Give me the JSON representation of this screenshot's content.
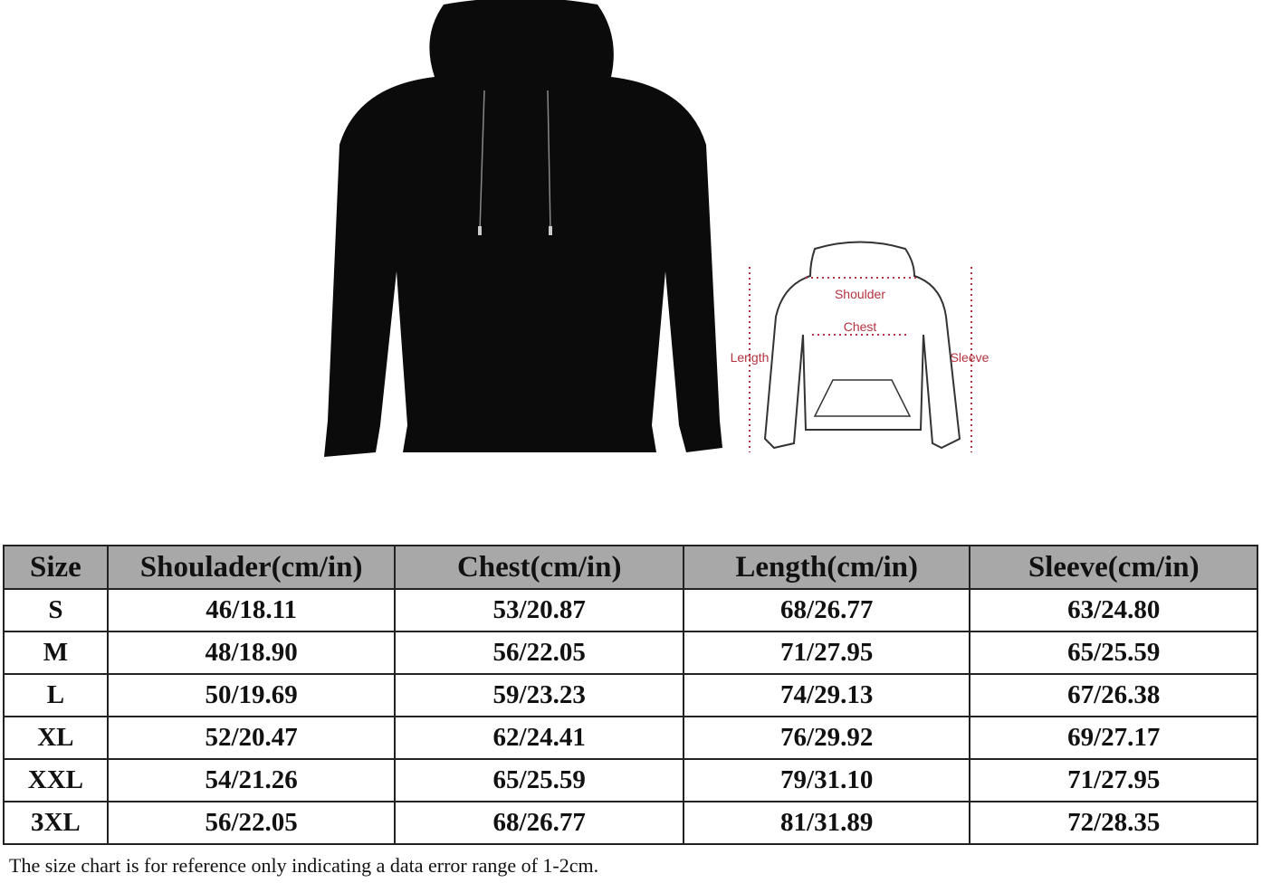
{
  "diagram": {
    "labels": {
      "shoulder": "Shoulder",
      "chest": "Chest",
      "length": "Length",
      "sleeve": "Sleeve"
    },
    "accent": "#b5323f"
  },
  "table": {
    "headers": [
      "Size",
      "Shoulader(cm/in)",
      "Chest(cm/in)",
      "Length(cm/in)",
      "Sleeve(cm/in)"
    ],
    "rows": [
      [
        "S",
        "46/18.11",
        "53/20.87",
        "68/26.77",
        "63/24.80"
      ],
      [
        "M",
        "48/18.90",
        "56/22.05",
        "71/27.95",
        "65/25.59"
      ],
      [
        "L",
        "50/19.69",
        "59/23.23",
        "74/29.13",
        "67/26.38"
      ],
      [
        "XL",
        "52/20.47",
        "62/24.41",
        "76/29.92",
        "69/27.17"
      ],
      [
        "XXL",
        "54/21.26",
        "65/25.59",
        "79/31.10",
        "71/27.95"
      ],
      [
        "3XL",
        "56/22.05",
        "68/26.77",
        "81/31.89",
        "72/28.35"
      ]
    ]
  },
  "note": "The size chart is for reference only indicating a data error range of 1-2cm."
}
